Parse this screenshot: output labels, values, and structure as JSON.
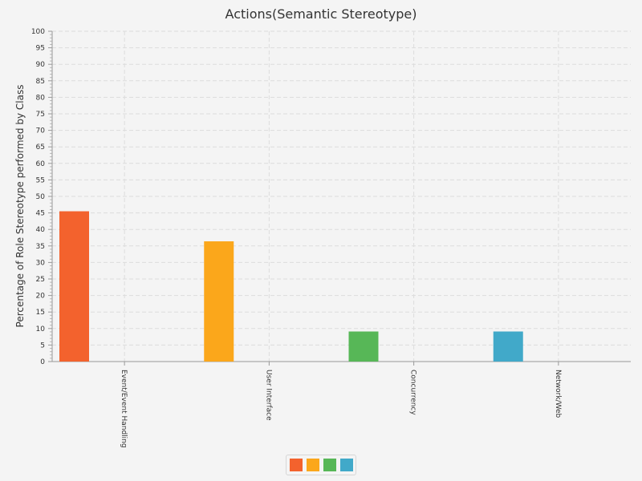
{
  "chart_data": {
    "type": "bar",
    "title": "Actions(Semantic Stereotype)",
    "ylabel": "Percentage of Role Stereotype performed by Class",
    "xlabel": "",
    "ylim": [
      0,
      100
    ],
    "ytick_step": 5,
    "yticks": [
      "0",
      "5",
      "10",
      "15",
      "20",
      "25",
      "30",
      "35",
      "40",
      "45",
      "50",
      "55",
      "60",
      "65",
      "70",
      "75",
      "80",
      "85",
      "90",
      "95",
      "100"
    ],
    "categories": [
      "Event/Event Handling",
      "User Interface",
      "Concurrency",
      "Network/Web"
    ],
    "values": [
      45.5,
      36.4,
      9.1,
      9.1
    ],
    "colors": [
      "#f3622d",
      "#fba71b",
      "#57b757",
      "#41a9c9"
    ],
    "grid": true,
    "legend_position": "bottom"
  }
}
